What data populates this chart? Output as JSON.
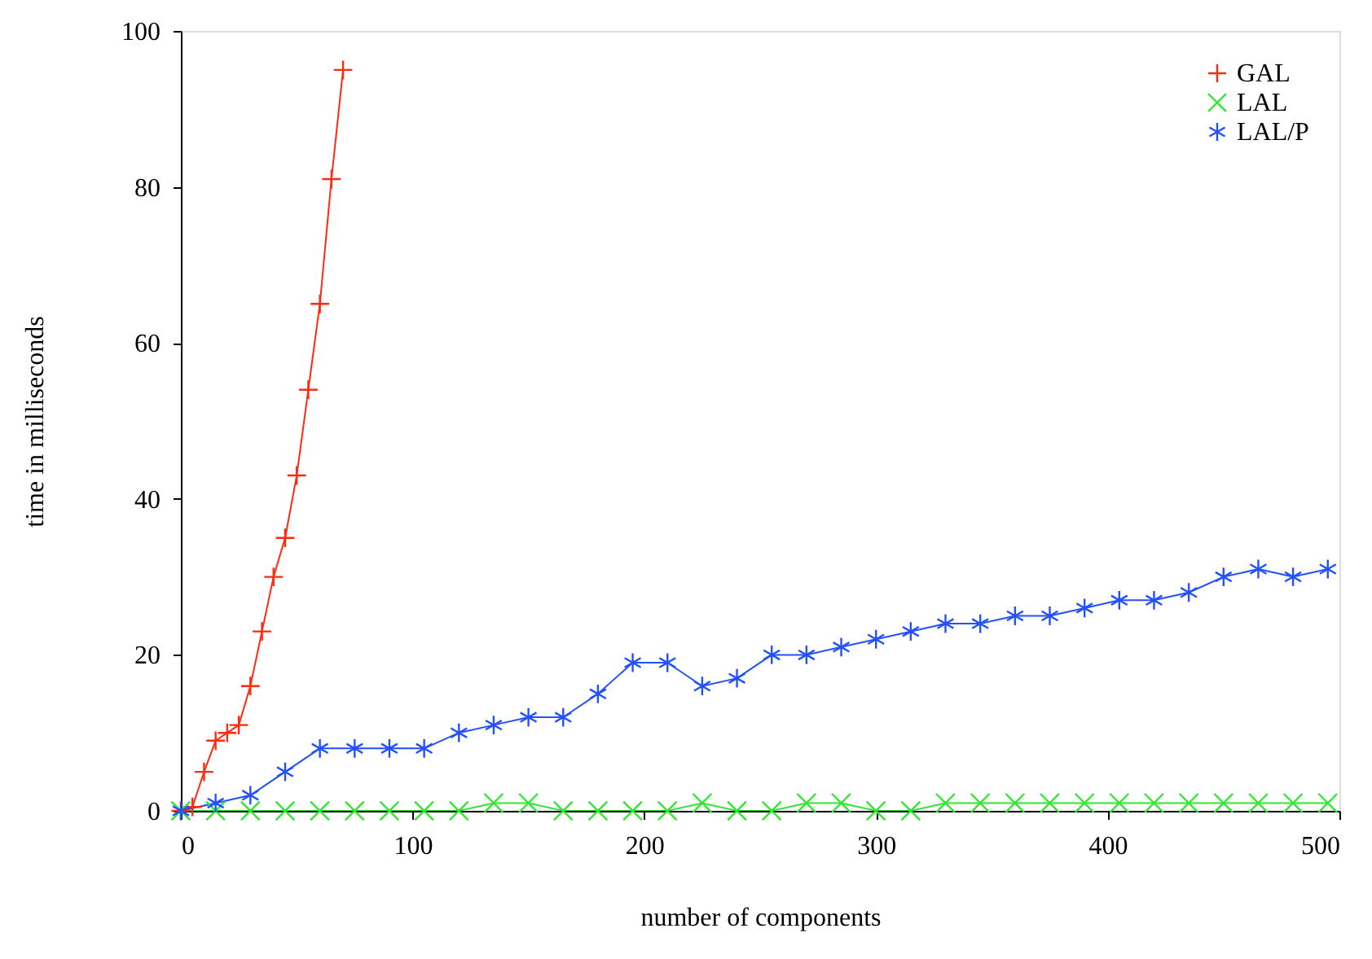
{
  "chart_data": {
    "type": "line",
    "xlabel": "number of components",
    "ylabel": "time in milliseconds",
    "xlim": [
      0,
      500
    ],
    "xticks": [
      0,
      100,
      200,
      300,
      400,
      500
    ],
    "ylim": [
      0,
      100
    ],
    "yticks": [
      0,
      20,
      40,
      60,
      80,
      100
    ],
    "grid": false,
    "legend": "top right",
    "line_style": "solid",
    "series": [
      {
        "name": "GAL",
        "color": "#ff2a10",
        "marker": "cross",
        "x": [
          0,
          5,
          10,
          15,
          20,
          25,
          30,
          35,
          40,
          45,
          50,
          55,
          60,
          65,
          70
        ],
        "values": [
          0,
          0.5,
          5,
          9,
          10,
          11,
          16,
          23,
          30,
          35,
          43,
          54,
          65,
          81,
          95
        ]
      },
      {
        "name": "LAL",
        "color": "#33e633",
        "marker": "cross",
        "x": [
          0,
          15,
          30,
          45,
          60,
          75,
          90,
          105,
          120,
          135,
          150,
          165,
          180,
          195,
          210,
          225,
          240,
          255,
          270,
          285,
          300,
          315,
          330,
          345,
          360,
          375,
          390,
          405,
          420,
          435,
          450,
          465,
          480,
          495
        ],
        "values": [
          0,
          0,
          0,
          0,
          0,
          0,
          0,
          0,
          0,
          1,
          1,
          0,
          0,
          0,
          0,
          1,
          0,
          0,
          1,
          1,
          0,
          0,
          1,
          1,
          1,
          1,
          1,
          1,
          1,
          1,
          1,
          1,
          1,
          1
        ]
      },
      {
        "name": "LAL/P",
        "color": "#2350ff",
        "marker": "cross",
        "x": [
          0,
          15,
          30,
          45,
          60,
          75,
          90,
          105,
          120,
          135,
          150,
          165,
          180,
          195,
          210,
          225,
          240,
          255,
          270,
          285,
          300,
          315,
          330,
          345,
          360,
          375,
          390,
          405,
          420,
          435,
          450,
          465,
          480,
          495
        ],
        "values": [
          0,
          1,
          2,
          5,
          8,
          8,
          8,
          8,
          10,
          11,
          12,
          12,
          15,
          19,
          19,
          16,
          17,
          20,
          20,
          21,
          22,
          23,
          24,
          24,
          25,
          25,
          26,
          27,
          27,
          28,
          30,
          31,
          30,
          31
        ]
      }
    ]
  }
}
